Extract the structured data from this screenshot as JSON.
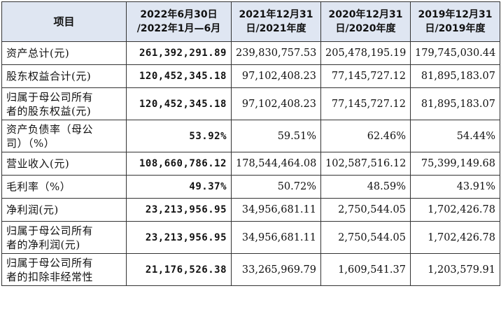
{
  "header": {
    "item": "项目",
    "col1": [
      "2022年6月30日",
      "/2022年1月—6月"
    ],
    "col2": [
      "2021年12月31",
      "日/2021年度"
    ],
    "col3": [
      "2020年12月31",
      "日/2020年度"
    ],
    "col4": [
      "2019年12月31",
      "日/2019年度"
    ]
  },
  "rows": [
    {
      "label": "资产总计(元)",
      "v1": "261,392,291.89",
      "v2": "239,830,757.53",
      "v3": "205,478,195.19",
      "v4": "179,745,030.44"
    },
    {
      "label": "股东权益合计(元)",
      "v1": "120,452,345.18",
      "v2": "97,102,408.23",
      "v3": "77,145,727.12",
      "v4": "81,895,183.07"
    },
    {
      "label_lines": [
        "归属于母公司所有",
        "者的股东权益(元)"
      ],
      "v1": "120,452,345.18",
      "v2": "97,102,408.23",
      "v3": "77,145,727.12",
      "v4": "81,895,183.07"
    },
    {
      "label_lines": [
        "资产负债率（母公",
        "司）（%）"
      ],
      "v1": "53.92%",
      "v2": "59.51%",
      "v3": "62.46%",
      "v4": "54.44%"
    },
    {
      "label": "营业收入(元)",
      "v1": "108,660,786.12",
      "v2": "178,544,464.08",
      "v3": "102,587,516.12",
      "v4": "75,399,149.68"
    },
    {
      "label": "毛利率（%）",
      "v1": "49.37%",
      "v2": "50.72%",
      "v3": "48.59%",
      "v4": "43.91%"
    },
    {
      "label": "净利润(元)",
      "v1": "23,213,956.95",
      "v2": "34,956,681.11",
      "v3": "2,750,544.05",
      "v4": "1,702,426.78"
    },
    {
      "label_lines": [
        "归属于母公司所有",
        "者的净利润(元)"
      ],
      "v1": "23,213,956.95",
      "v2": "34,956,681.11",
      "v3": "2,750,544.05",
      "v4": "1,702,426.78"
    },
    {
      "label_lines": [
        "归属于母公司所有",
        "者的扣除非经常性"
      ],
      "v1": "21,176,526.38",
      "v2": "33,265,969.79",
      "v3": "1,609,541.37",
      "v4": "1,203,579.91"
    }
  ]
}
